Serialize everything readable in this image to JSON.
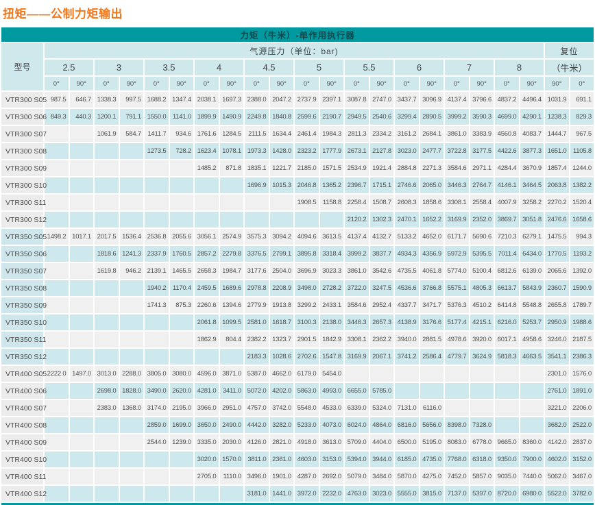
{
  "title": "扭矩——公制力矩输出",
  "colors": {
    "accent_teal": "#0099a0",
    "header_cyan": "#cfe8ec",
    "row_cyan": "#cde9ee",
    "row_gray": "#f1f0f0",
    "label_gray": "#ececec",
    "label_cyan": "#cfe7ec",
    "title_orange": "#f0791e",
    "text": "#4c4c4c"
  },
  "table": {
    "band_title": "力矩（牛米）-单作用执行器",
    "model_header": "型号",
    "pressure_header": "气源压力（单位：bar)",
    "reset_header_line1": "复位",
    "reset_header_line2": "（牛米）",
    "pressures": [
      "2.5",
      "3",
      "3.5",
      "4",
      "4.5",
      "5",
      "5.5",
      "6",
      "7",
      "8"
    ],
    "deg0": "0°",
    "deg90": "90°",
    "reset_degs": [
      "90°",
      "0°"
    ],
    "rows": [
      {
        "model": "VTR300 S05",
        "values": [
          "987.5",
          "646.7",
          "1338.3",
          "997.5",
          "1688.2",
          "1347.4",
          "2038.1",
          "1697.3",
          "2388.0",
          "2047.2",
          "2737.9",
          "2397.1",
          "3087.8",
          "2747.0",
          "3437.7",
          "3096.9",
          "4137.4",
          "3796.6",
          "4837.2",
          "4496.4",
          "1031.9",
          "691.1"
        ]
      },
      {
        "model": "VTR300 S06",
        "values": [
          "849.3",
          "440.3",
          "1200.1",
          "791.1",
          "1550.0",
          "1141.0",
          "1899.9",
          "1490.9",
          "2249.8",
          "1840.8",
          "2599.6",
          "2190.7",
          "2949.5",
          "2540.6",
          "3299.4",
          "2890.5",
          "3999.2",
          "3590.3",
          "4699.0",
          "4290.1",
          "1238.3",
          "829.3"
        ]
      },
      {
        "model": "VTR300 S07",
        "values": [
          "",
          "",
          "1061.9",
          "584.7",
          "1411.7",
          "934.6",
          "1761.6",
          "1284.5",
          "2111.5",
          "1634.4",
          "2461.4",
          "1984.3",
          "2811.3",
          "2334.2",
          "3161.2",
          "2684.1",
          "3861.0",
          "3383.9",
          "4560.8",
          "4083.7",
          "1444.7",
          "967.5"
        ]
      },
      {
        "model": "VTR300 S08",
        "values": [
          "",
          "",
          "",
          "",
          "1273.5",
          "728.2",
          "1623.4",
          "1078.1",
          "1973.3",
          "1428.0",
          "2323.2",
          "1777.9",
          "2673.1",
          "2127.8",
          "3023.0",
          "2477.7",
          "3722.8",
          "3177.5",
          "4422.6",
          "3877.3",
          "1651.0",
          "1105.8"
        ]
      },
      {
        "model": "VTR300 S09",
        "values": [
          "",
          "",
          "",
          "",
          "",
          "",
          "1485.2",
          "871.8",
          "1835.1",
          "1221.7",
          "2185.0",
          "1571.5",
          "2534.9",
          "1921.4",
          "2884.8",
          "2271.3",
          "3584.6",
          "2971.1",
          "4284.4",
          "3670.9",
          "1857.4",
          "1244.0"
        ]
      },
      {
        "model": "VTR300 S10",
        "values": [
          "",
          "",
          "",
          "",
          "",
          "",
          "",
          "",
          "1696.9",
          "1015.3",
          "2046.8",
          "1365.2",
          "2396.7",
          "1715.1",
          "2746.6",
          "2065.0",
          "3446.3",
          "2764.7",
          "4146.1",
          "3464.5",
          "2063.8",
          "1382.2"
        ]
      },
      {
        "model": "VTR300 S11",
        "values": [
          "",
          "",
          "",
          "",
          "",
          "",
          "",
          "",
          "",
          "",
          "1908.5",
          "1158.8",
          "2258.4",
          "1508.7",
          "2608.3",
          "1858.6",
          "3308.1",
          "2558.4",
          "4007.9",
          "3258.2",
          "2270.2",
          "1520.4"
        ]
      },
      {
        "model": "VTR300 S12",
        "values": [
          "",
          "",
          "",
          "",
          "",
          "",
          "",
          "",
          "",
          "",
          "",
          "",
          "2120.2",
          "1302.3",
          "2470.1",
          "1652.2",
          "3169.9",
          "2352.0",
          "3869.7",
          "3051.8",
          "2476.6",
          "1658.6"
        ]
      },
      {
        "model": "VTR350 S05",
        "values": [
          "1498.2",
          "1017.1",
          "2017.5",
          "1536.4",
          "2536.8",
          "2055.6",
          "3056.1",
          "2574.9",
          "3575.3",
          "3094.2",
          "4094.6",
          "3613.5",
          "4137.4",
          "4132.7",
          "5133.2",
          "4652.0",
          "6171.7",
          "5690.6",
          "7210.3",
          "6279.1",
          "1475.5",
          "994.3"
        ]
      },
      {
        "model": "VTR350 S06",
        "values": [
          "",
          "",
          "1818.6",
          "1241.3",
          "2337.9",
          "1760.5",
          "2857.2",
          "2279.8",
          "3376.5",
          "2799.1",
          "3895.8",
          "3318.4",
          "3999.2",
          "3837.7",
          "4934.3",
          "4356.9",
          "5972.9",
          "5395.5",
          "7011.4",
          "6434.0",
          "1770.5",
          "1193.2"
        ]
      },
      {
        "model": "VTR350 S07",
        "values": [
          "",
          "",
          "1619.8",
          "946.2",
          "2139.1",
          "1465.5",
          "2658.3",
          "1984.7",
          "3177.6",
          "2504.0",
          "3696.9",
          "3023.3",
          "3861.0",
          "3542.6",
          "4735.5",
          "4061.8",
          "5774.0",
          "5100.4",
          "6812.6",
          "6139.0",
          "2065.6",
          "1392.0"
        ]
      },
      {
        "model": "VTR350 S08",
        "values": [
          "",
          "",
          "",
          "",
          "1940.2",
          "1170.4",
          "2459.5",
          "1689.6",
          "2978.8",
          "2208.9",
          "3498.0",
          "2728.2",
          "3722.0",
          "3247.5",
          "4536.6",
          "3766.8",
          "5575.1",
          "4805.3",
          "6613.7",
          "5843.9",
          "2360.7",
          "1590.9"
        ]
      },
      {
        "model": "VTR350 S09",
        "values": [
          "",
          "",
          "",
          "",
          "1741.3",
          "875.3",
          "2260.6",
          "1394.6",
          "2779.9",
          "1913.8",
          "3299.2",
          "2433.1",
          "3584.6",
          "2952.4",
          "4337.7",
          "3471.7",
          "5376.3",
          "4510.2",
          "6414.8",
          "5548.8",
          "2655.8",
          "1789.7"
        ]
      },
      {
        "model": "VTR350 S10",
        "values": [
          "",
          "",
          "",
          "",
          "",
          "",
          "2061.8",
          "1099.5",
          "2581.0",
          "1618.7",
          "3100.3",
          "2138.0",
          "3446.3",
          "2657.3",
          "4138.9",
          "3176.6",
          "5177.4",
          "4215.1",
          "6216.0",
          "5253.7",
          "2950.9",
          "1988.6"
        ]
      },
      {
        "model": "VTR350 S11",
        "values": [
          "",
          "",
          "",
          "",
          "",
          "",
          "1862.9",
          "804.4",
          "2382.2",
          "1323.7",
          "2901.5",
          "1842.9",
          "3308.1",
          "2362.2",
          "3940.0",
          "2881.5",
          "4978.6",
          "3920.0",
          "6017.1",
          "4958.6",
          "3246.0",
          "2187.5"
        ]
      },
      {
        "model": "VTR350 S12",
        "values": [
          "",
          "",
          "",
          "",
          "",
          "",
          "",
          "",
          "2183.3",
          "1028.6",
          "2702.6",
          "1547.8",
          "3169.9",
          "2067.1",
          "3741.2",
          "2586.4",
          "4779.7",
          "3624.9",
          "5818.3",
          "4663.5",
          "3541.1",
          "2386.3"
        ]
      },
      {
        "model": "VTR400 S05",
        "values": [
          "2222.0",
          "1497.0",
          "3013.0",
          "2288.0",
          "3805.0",
          "3080.0",
          "4596.0",
          "3871.0",
          "5387.0",
          "4662.0",
          "6179.0",
          "5454.0",
          "",
          "",
          "",
          "",
          "",
          "",
          "",
          "",
          "2301.0",
          "1576.0"
        ]
      },
      {
        "model": "VTR400 S06",
        "values": [
          "",
          "",
          "2698.0",
          "1828.0",
          "3490.0",
          "2620.0",
          "4281.0",
          "3411.0",
          "5072.0",
          "4202.0",
          "5863.0",
          "4993.0",
          "6655.0",
          "5785.0",
          "",
          "",
          "",
          "",
          "",
          "",
          "2761.0",
          "1891.0"
        ]
      },
      {
        "model": "VTR400 S07",
        "values": [
          "",
          "",
          "2383.0",
          "1368.0",
          "3174.0",
          "2195.0",
          "3966.0",
          "2951.0",
          "4757.0",
          "3742.0",
          "5548.0",
          "4533.0",
          "6339.0",
          "5324.0",
          "7131.0",
          "6116.0",
          "",
          "",
          "",
          "",
          "3221.0",
          "2206.0"
        ]
      },
      {
        "model": "VTR400 S08",
        "values": [
          "",
          "",
          "",
          "",
          "2859.0",
          "1699.0",
          "3650.0",
          "2490.0",
          "4442.0",
          "3282.0",
          "5233.0",
          "4073.0",
          "6024.0",
          "4864.0",
          "6816.0",
          "5656.0",
          "8398.0",
          "7328.0",
          "",
          "",
          "3682.0",
          "2522.0"
        ]
      },
      {
        "model": "VTR400 S09",
        "values": [
          "",
          "",
          "",
          "",
          "2544.0",
          "1239.0",
          "3335.0",
          "2030.0",
          "4126.0",
          "2821.0",
          "4918.0",
          "3613.0",
          "5709.0",
          "4404.0",
          "6500.0",
          "5195.0",
          "8083.0",
          "6778.0",
          "9665.0",
          "8360.0",
          "4142.0",
          "2837.0"
        ]
      },
      {
        "model": "VTR400 S10",
        "values": [
          "",
          "",
          "",
          "",
          "",
          "",
          "3020.0",
          "1570.0",
          "3811.0",
          "2361.0",
          "4603.0",
          "3153.0",
          "5394.0",
          "3944.0",
          "6185.0",
          "4735.0",
          "7768.0",
          "6318.0",
          "9350.0",
          "7900.0",
          "4602.0",
          "3152.0"
        ]
      },
      {
        "model": "VTR400 S11",
        "values": [
          "",
          "",
          "",
          "",
          "",
          "",
          "2705.0",
          "1110.0",
          "3496.0",
          "1901.0",
          "4287.0",
          "2692.0",
          "5079.0",
          "3484.0",
          "5870.0",
          "4275.0",
          "7452.0",
          "5857.0",
          "9035.0",
          "7440.0",
          "5062.0",
          "3467.0"
        ]
      },
      {
        "model": "VTR400 S12",
        "values": [
          "",
          "",
          "",
          "",
          "",
          "",
          "",
          "",
          "3181.0",
          "1441.0",
          "3972.0",
          "2232.0",
          "4763.0",
          "3023.0",
          "5555.0",
          "3815.0",
          "7137.0",
          "5397.0",
          "8720.0",
          "6980.0",
          "5522.0",
          "3782.0"
        ]
      }
    ]
  }
}
